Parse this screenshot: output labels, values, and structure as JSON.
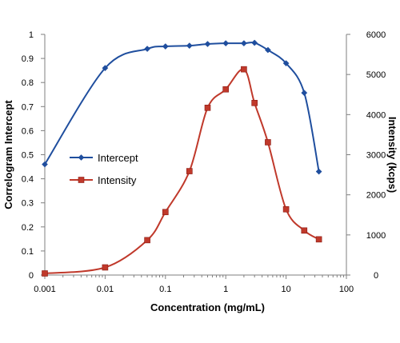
{
  "chart_data": {
    "type": "line",
    "title": "",
    "xlabel": "Concentration (mg/mL)",
    "ylabel": "Correlogram Intercept",
    "y2label": "Intensity (kcps)",
    "xscale": "log",
    "xlim": [
      0.001,
      100
    ],
    "ylim": [
      0,
      1
    ],
    "y2lim": [
      0,
      6000
    ],
    "x_ticks": [
      "0.001",
      "0.01",
      "0.1",
      "1",
      "10",
      "100"
    ],
    "y_ticks": [
      "0",
      "0.1",
      "0.2",
      "0.3",
      "0.4",
      "0.5",
      "0.6",
      "0.7",
      "0.8",
      "0.9",
      "1"
    ],
    "y2_ticks": [
      "0",
      "1000",
      "2000",
      "3000",
      "4000",
      "5000",
      "6000"
    ],
    "grid": false,
    "legend": "center-left",
    "series": [
      {
        "name": "Intercept",
        "axis": "left",
        "color": "#1f4e9e",
        "marker": "diamond",
        "x": [
          0.001,
          0.01,
          0.05,
          0.1,
          0.25,
          0.5,
          1,
          2,
          3,
          5,
          10,
          20,
          35
        ],
        "y": [
          0.46,
          0.86,
          0.94,
          0.95,
          0.953,
          0.96,
          0.963,
          0.963,
          0.965,
          0.935,
          0.88,
          0.757,
          0.43
        ]
      },
      {
        "name": "Intensity",
        "axis": "right",
        "color": "#c0392b",
        "marker": "square",
        "x": [
          0.001,
          0.01,
          0.05,
          0.1,
          0.25,
          0.5,
          1,
          2,
          3,
          5,
          10,
          20,
          35
        ],
        "y": [
          40,
          190,
          870,
          1570,
          2590,
          4170,
          4630,
          5130,
          4290,
          3310,
          1640,
          1110,
          890
        ]
      }
    ]
  }
}
